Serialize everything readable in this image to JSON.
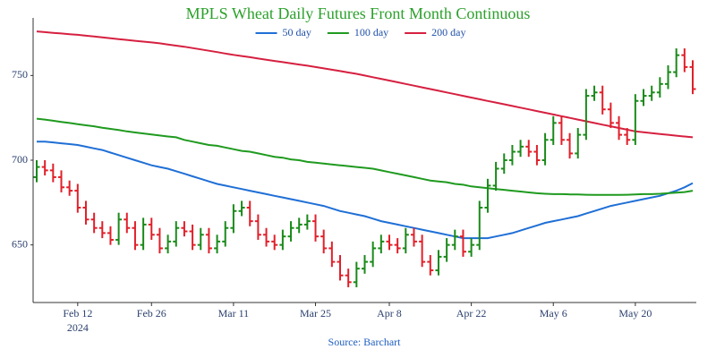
{
  "chart_data": {
    "type": "ohlc",
    "title": "MPLS Wheat Daily Futures Front Month Continuous",
    "source": "Source: Barchart",
    "x_sublabel": "2024",
    "up_color": "#1a8a1a",
    "down_color": "#e0202a",
    "title_color": "#2ca02c",
    "ylim": [
      616,
      784
    ],
    "yticks": [
      650,
      700,
      750
    ],
    "xticks": [
      {
        "value": "2024-02-12",
        "label": "Feb 12"
      },
      {
        "value": "2024-02-26",
        "label": "Feb 26"
      },
      {
        "value": "2024-03-11",
        "label": "Mar 11"
      },
      {
        "value": "2024-03-25",
        "label": "Mar 25"
      },
      {
        "value": "2024-04-08",
        "label": "Apr 8"
      },
      {
        "value": "2024-04-22",
        "label": "Apr 22"
      },
      {
        "value": "2024-05-06",
        "label": "May 6"
      },
      {
        "value": "2024-05-20",
        "label": "May 20"
      }
    ],
    "x": [
      "2024-02-05",
      "2024-02-06",
      "2024-02-07",
      "2024-02-08",
      "2024-02-09",
      "2024-02-12",
      "2024-02-13",
      "2024-02-14",
      "2024-02-15",
      "2024-02-16",
      "2024-02-20",
      "2024-02-21",
      "2024-02-22",
      "2024-02-23",
      "2024-02-26",
      "2024-02-27",
      "2024-02-28",
      "2024-02-29",
      "2024-03-01",
      "2024-03-04",
      "2024-03-05",
      "2024-03-06",
      "2024-03-07",
      "2024-03-08",
      "2024-03-11",
      "2024-03-12",
      "2024-03-13",
      "2024-03-14",
      "2024-03-15",
      "2024-03-18",
      "2024-03-19",
      "2024-03-20",
      "2024-03-21",
      "2024-03-22",
      "2024-03-25",
      "2024-03-26",
      "2024-03-27",
      "2024-03-28",
      "2024-04-01",
      "2024-04-02",
      "2024-04-03",
      "2024-04-04",
      "2024-04-05",
      "2024-04-08",
      "2024-04-09",
      "2024-04-10",
      "2024-04-11",
      "2024-04-12",
      "2024-04-15",
      "2024-04-16",
      "2024-04-17",
      "2024-04-18",
      "2024-04-19",
      "2024-04-22",
      "2024-04-23",
      "2024-04-24",
      "2024-04-25",
      "2024-04-26",
      "2024-04-29",
      "2024-04-30",
      "2024-05-01",
      "2024-05-02",
      "2024-05-03",
      "2024-05-06",
      "2024-05-07",
      "2024-05-08",
      "2024-05-09",
      "2024-05-10",
      "2024-05-13",
      "2024-05-14",
      "2024-05-15",
      "2024-05-16",
      "2024-05-17",
      "2024-05-20",
      "2024-05-21",
      "2024-05-22",
      "2024-05-23",
      "2024-05-24",
      "2024-05-28",
      "2024-05-29",
      "2024-05-30"
    ],
    "open": [
      690,
      696,
      694,
      690,
      684,
      682,
      672,
      665,
      660,
      657,
      653,
      665,
      660,
      650,
      662,
      656,
      648,
      652,
      660,
      658,
      650,
      656,
      648,
      652,
      660,
      670,
      672,
      664,
      656,
      652,
      650,
      655,
      660,
      662,
      664,
      655,
      648,
      640,
      632,
      628,
      636,
      640,
      648,
      652,
      650,
      648,
      656,
      652,
      640,
      635,
      643,
      650,
      655,
      646,
      650,
      672,
      685,
      695,
      700,
      705,
      708,
      705,
      700,
      712,
      722,
      712,
      704,
      715,
      738,
      740,
      730,
      722,
      715,
      712,
      735,
      738,
      740,
      745,
      752,
      762,
      755
    ],
    "high": [
      700,
      700,
      698,
      694,
      688,
      686,
      676,
      669,
      664,
      661,
      669,
      669,
      664,
      666,
      666,
      660,
      656,
      664,
      664,
      662,
      660,
      660,
      656,
      664,
      674,
      676,
      676,
      668,
      660,
      656,
      659,
      664,
      666,
      668,
      668,
      659,
      652,
      644,
      636,
      640,
      644,
      652,
      656,
      656,
      654,
      660,
      660,
      656,
      644,
      647,
      654,
      659,
      659,
      654,
      676,
      689,
      699,
      704,
      709,
      712,
      712,
      709,
      716,
      726,
      726,
      716,
      719,
      742,
      744,
      744,
      734,
      726,
      719,
      739,
      742,
      744,
      749,
      756,
      766,
      766,
      759
    ],
    "low": [
      687,
      691,
      687,
      681,
      679,
      669,
      662,
      657,
      654,
      650,
      650,
      657,
      647,
      647,
      653,
      645,
      645,
      649,
      655,
      647,
      647,
      645,
      645,
      649,
      657,
      667,
      661,
      653,
      649,
      647,
      647,
      652,
      657,
      659,
      652,
      645,
      637,
      629,
      625,
      625,
      633,
      637,
      645,
      647,
      645,
      645,
      649,
      637,
      632,
      632,
      640,
      647,
      643,
      643,
      647,
      669,
      682,
      692,
      697,
      702,
      702,
      697,
      697,
      709,
      709,
      701,
      701,
      712,
      735,
      727,
      719,
      712,
      709,
      709,
      732,
      735,
      737,
      742,
      749,
      752,
      739
    ],
    "close": [
      696,
      694,
      690,
      684,
      682,
      672,
      665,
      660,
      657,
      653,
      665,
      660,
      650,
      662,
      656,
      648,
      652,
      660,
      658,
      650,
      656,
      648,
      652,
      660,
      670,
      672,
      664,
      656,
      652,
      650,
      655,
      660,
      662,
      664,
      655,
      648,
      640,
      632,
      628,
      636,
      640,
      648,
      652,
      650,
      648,
      656,
      652,
      640,
      635,
      643,
      650,
      655,
      646,
      650,
      672,
      685,
      695,
      700,
      705,
      708,
      705,
      700,
      712,
      722,
      712,
      704,
      715,
      738,
      740,
      730,
      722,
      715,
      712,
      735,
      738,
      740,
      745,
      752,
      762,
      755,
      742
    ],
    "series": [
      {
        "name": "50 day",
        "color": "#1f6fd6",
        "values": [
          711,
          711,
          710.5,
          710,
          709.5,
          709,
          708,
          707,
          706,
          704.5,
          703,
          701.5,
          700,
          698.5,
          697,
          696,
          695,
          693.5,
          692,
          690.5,
          689,
          687.5,
          686,
          685,
          684,
          683,
          682,
          681,
          680,
          679,
          678,
          677,
          676,
          675,
          674,
          673,
          671.5,
          670,
          669,
          668,
          667,
          665.5,
          664,
          663,
          662,
          661,
          660,
          659,
          658,
          657,
          656,
          655,
          654,
          654,
          654,
          654,
          655,
          656,
          657,
          658.5,
          660,
          661.5,
          663,
          664,
          665,
          666,
          667,
          668.5,
          670,
          671.5,
          673,
          674,
          675,
          676,
          677,
          678,
          679,
          680.5,
          682,
          684,
          686.5
        ]
      },
      {
        "name": "100 day",
        "color": "#1f9a1f",
        "values": [
          724.5,
          724,
          723.3,
          722.6,
          722,
          721.3,
          720.6,
          720,
          719.2,
          718.5,
          717.8,
          717,
          716.4,
          715.8,
          715.2,
          714.6,
          714,
          713.5,
          712,
          711,
          710,
          709,
          708.5,
          707.5,
          706.5,
          705.5,
          705,
          704,
          703,
          702,
          701.5,
          700.5,
          700,
          699,
          698.5,
          698,
          697.5,
          697,
          696.5,
          696,
          695.5,
          695,
          694,
          693,
          692,
          691,
          690,
          689,
          688,
          687.5,
          687,
          686,
          685.5,
          684.5,
          684,
          683.5,
          683,
          682.5,
          682,
          681.5,
          681,
          680.5,
          680.2,
          680,
          680,
          679.8,
          679.8,
          679.6,
          679.5,
          679.5,
          679.5,
          679.5,
          679.6,
          679.8,
          680,
          680,
          680.2,
          680.5,
          680.8,
          681.2,
          682
        ]
      },
      {
        "name": "200 day",
        "color": "#d62040",
        "values": [
          776,
          775.6,
          775.2,
          774.8,
          774.4,
          774,
          773.5,
          773,
          772.5,
          772,
          771.5,
          771,
          770.5,
          770,
          769.5,
          769,
          768.3,
          767.6,
          767,
          766.2,
          765.4,
          764.6,
          763.8,
          763,
          762.2,
          761.5,
          760.8,
          760,
          759.3,
          758.6,
          757.9,
          757.2,
          756.5,
          755.8,
          755,
          754.2,
          753.4,
          752.6,
          751.8,
          751,
          750,
          749,
          748,
          747,
          746,
          745,
          744,
          743,
          742,
          741,
          740,
          739,
          738,
          737,
          736,
          735,
          734,
          733,
          732,
          731,
          730,
          729,
          728,
          727,
          726,
          725,
          724,
          723,
          722,
          721,
          720,
          719,
          718,
          717,
          716.5,
          716,
          715.5,
          715,
          714.5,
          714,
          713.5
        ]
      }
    ]
  }
}
